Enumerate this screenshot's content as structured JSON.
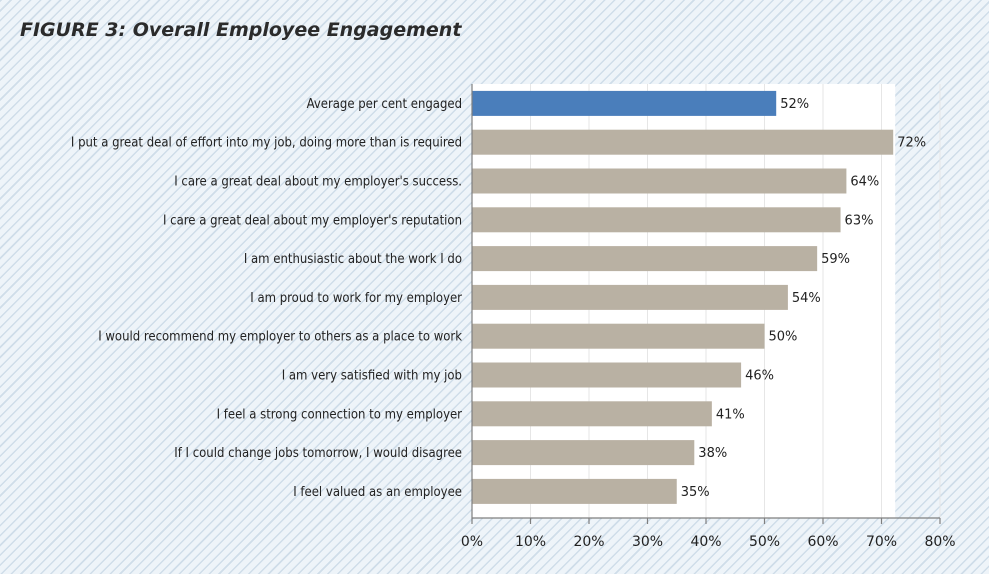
{
  "title": "FIGURE 3: Overall Employee Engagement",
  "colors": {
    "highlight": "#4a7ebb",
    "bar": "#b9b1a3",
    "plot_bg": "#ffffff",
    "axis": "#7f7f7f"
  },
  "chart_data": {
    "type": "bar",
    "orientation": "horizontal",
    "categories": [
      "Average per cent engaged",
      "I put a great deal of effort into my job, doing more than is required",
      "I care a great deal about my employer's success.",
      "I care a great deal about my employer's reputation",
      "I am enthusiastic about the work I do",
      "I am proud to work for my employer",
      "I would recommend my employer to others as a place to work",
      "I am very satisfied with my job",
      "I feel a strong connection to my employer",
      "If I could change jobs tomorrow, I would disagree",
      "I feel valued as an employee"
    ],
    "values": [
      52,
      72,
      64,
      63,
      59,
      54,
      50,
      46,
      41,
      38,
      35
    ],
    "value_labels": [
      "52%",
      "72%",
      "64%",
      "63%",
      "59%",
      "54%",
      "50%",
      "46%",
      "41%",
      "38%",
      "35%"
    ],
    "xlim": [
      0,
      80
    ],
    "ticks": [
      0,
      10,
      20,
      30,
      40,
      50,
      60,
      70,
      80
    ],
    "tick_labels": [
      "0%",
      "10%",
      "20%",
      "30%",
      "40%",
      "50%",
      "60%",
      "70%",
      "80%"
    ],
    "highlight_index": 0,
    "grid": "vertical"
  }
}
